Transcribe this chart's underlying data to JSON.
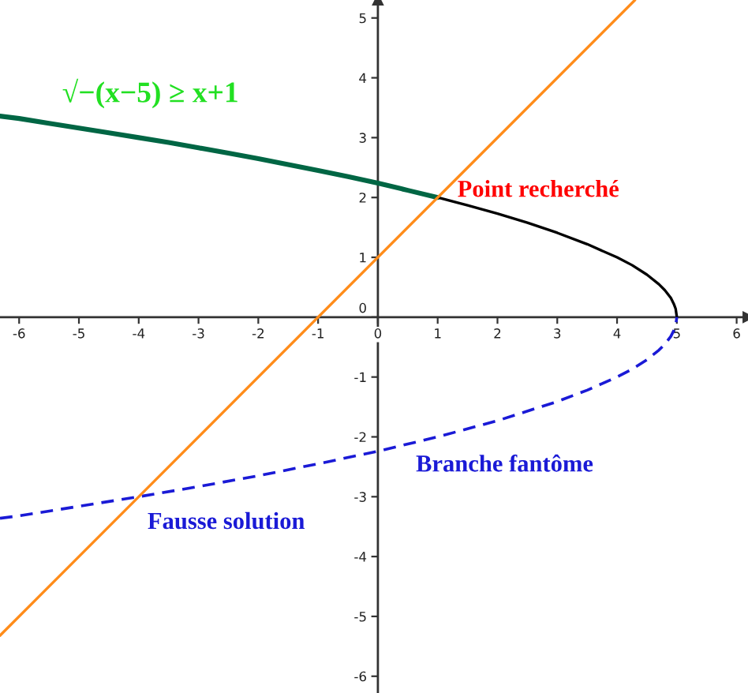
{
  "chart_data": {
    "type": "line",
    "series": [
      {
        "color": "#006644",
        "x": [
          -6.32,
          -6,
          -5.5,
          -5,
          -4.5,
          -4,
          -3.5,
          -3,
          -2.5,
          -2,
          -1.5,
          -1,
          -0.5,
          0,
          0.5,
          1
        ],
        "values": [
          3.36,
          3.32,
          3.24,
          3.16,
          3.08,
          3,
          2.92,
          2.83,
          2.74,
          2.65,
          2.55,
          2.45,
          2.35,
          2.24,
          2.12,
          2
        ]
      },
      {
        "color": "#000000",
        "x": [
          1,
          1.5,
          2,
          2.5,
          3,
          3.5,
          4,
          4.25,
          4.5,
          4.7,
          4.8,
          4.9,
          4.95,
          4.98,
          5
        ],
        "values": [
          2,
          1.87,
          1.73,
          1.58,
          1.41,
          1.22,
          1,
          0.87,
          0.71,
          0.55,
          0.45,
          0.32,
          0.22,
          0.14,
          0
        ]
      },
      {
        "color": "#1a1ad6",
        "line_style": "dashed",
        "x": [
          -6.32,
          -6,
          -5,
          -4,
          -3,
          -2,
          -1,
          0,
          1,
          2,
          3,
          3.5,
          4,
          4.25,
          4.5,
          4.7,
          4.8,
          4.9,
          4.95,
          4.98,
          5
        ],
        "values": [
          -3.36,
          -3.32,
          -3.16,
          -3,
          -2.83,
          -2.65,
          -2.45,
          -2.24,
          -2,
          -1.73,
          -1.41,
          -1.22,
          -1,
          -0.87,
          -0.71,
          -0.55,
          -0.45,
          -0.32,
          -0.22,
          -0.14,
          0
        ]
      },
      {
        "color": "#ff8c1a",
        "x": [
          -6.32,
          -4,
          1,
          4.3
        ],
        "values": [
          -5.32,
          -3,
          2,
          5.3
        ]
      }
    ],
    "xlim": [
      -6.32,
      6.19
    ],
    "ylim": [
      -6.28,
      5.3
    ],
    "xticks": [
      -6,
      -5,
      -4,
      -3,
      -2,
      -1,
      0,
      1,
      2,
      3,
      4,
      5,
      6
    ],
    "yticks": [
      -6,
      -5,
      -4,
      -3,
      -2,
      -1,
      0,
      1,
      2,
      3,
      4,
      5
    ],
    "annotations": [
      "√−(x−5) ≥ x+1",
      {
        "text": "Point recherché",
        "x": 1,
        "y": 2
      },
      "Branche fantôme",
      {
        "text": "Fausse solution",
        "x": -4,
        "y": -3
      }
    ]
  }
}
